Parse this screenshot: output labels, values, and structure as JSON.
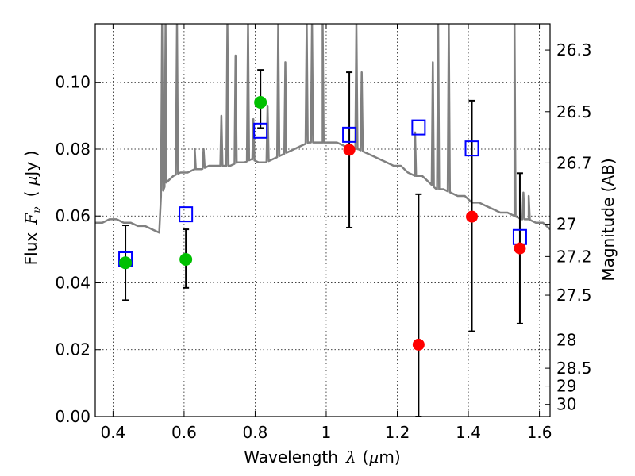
{
  "chart_data": {
    "type": "scatter",
    "xlabel_text": "Wavelength",
    "xlabel_symbol": "λ",
    "xlabel_unit_open": "(",
    "xlabel_mu": "μ",
    "xlabel_unit_close": "m)",
    "ylabel_text": "Flux",
    "ylabel_symbol": "F",
    "ylabel_sub": "ν",
    "ylabel_unit_open": "(",
    "ylabel_mu": "μ",
    "ylabel_unit_close": "Jy )",
    "y2label": "Magnitude (AB)",
    "xlim": [
      0.35,
      1.63
    ],
    "ylim": [
      0.0,
      0.1175
    ],
    "grid": true,
    "x_ticks": [
      0.4,
      0.6,
      0.8,
      1.0,
      1.2,
      1.4,
      1.6
    ],
    "x_tick_labels": [
      "0.4",
      "0.6",
      "0.8",
      "1",
      "1.2",
      "1.4",
      "1.6"
    ],
    "y_ticks": [
      0.0,
      0.02,
      0.04,
      0.06,
      0.08,
      0.1
    ],
    "y_tick_labels": [
      "0.00",
      "0.02",
      "0.04",
      "0.06",
      "0.08",
      "0.10"
    ],
    "mag_ticks": [
      26.3,
      26.5,
      26.7,
      27,
      27.2,
      27.5,
      28,
      28.5,
      29,
      30
    ],
    "mag_tick_labels": [
      "26.3",
      "26.5",
      "26.7",
      "27",
      "27.2",
      "27.5",
      "28",
      "28.5",
      "29",
      "30"
    ],
    "colors": {
      "model": "#808080",
      "detection": "#00c000",
      "measurement": "#ff0000",
      "model_photometry": "#0000ff",
      "errorbar": "#000000"
    },
    "series": [
      {
        "kind": "model_spectrum",
        "x": [
          0.35,
          0.37,
          0.39,
          0.41,
          0.43,
          0.45,
          0.47,
          0.49,
          0.51,
          0.53,
          0.535,
          0.55,
          0.57,
          0.59,
          0.61,
          0.63,
          0.65,
          0.67,
          0.69,
          0.71,
          0.73,
          0.75,
          0.77,
          0.79,
          0.81,
          0.83,
          0.85,
          0.87,
          0.89,
          0.91,
          0.93,
          0.95,
          0.97,
          0.99,
          1.01,
          1.03,
          1.05,
          1.07,
          1.09,
          1.11,
          1.13,
          1.15,
          1.17,
          1.19,
          1.21,
          1.23,
          1.25,
          1.27,
          1.29,
          1.31,
          1.33,
          1.35,
          1.37,
          1.39,
          1.41,
          1.43,
          1.45,
          1.47,
          1.49,
          1.51,
          1.53,
          1.55,
          1.57,
          1.59,
          1.61,
          1.63
        ],
        "y": [
          0.058,
          0.058,
          0.059,
          0.059,
          0.058,
          0.058,
          0.057,
          0.057,
          0.056,
          0.055,
          0.066,
          0.07,
          0.072,
          0.073,
          0.073,
          0.074,
          0.074,
          0.075,
          0.075,
          0.075,
          0.075,
          0.076,
          0.076,
          0.077,
          0.076,
          0.076,
          0.077,
          0.078,
          0.079,
          0.08,
          0.081,
          0.082,
          0.082,
          0.082,
          0.082,
          0.082,
          0.081,
          0.08,
          0.08,
          0.079,
          0.078,
          0.077,
          0.076,
          0.075,
          0.075,
          0.073,
          0.072,
          0.072,
          0.07,
          0.068,
          0.068,
          0.067,
          0.066,
          0.066,
          0.064,
          0.064,
          0.063,
          0.062,
          0.061,
          0.061,
          0.06,
          0.059,
          0.059,
          0.058,
          0.058,
          0.056
        ],
        "emission_lines": [
          {
            "x": 0.538,
            "peak": 0.1175
          },
          {
            "x": 0.548,
            "peak": 0.1175
          },
          {
            "x": 0.58,
            "peak": 0.1175
          },
          {
            "x": 0.63,
            "peak": 0.08
          },
          {
            "x": 0.655,
            "peak": 0.08
          },
          {
            "x": 0.705,
            "peak": 0.09
          },
          {
            "x": 0.722,
            "peak": 0.1175
          },
          {
            "x": 0.745,
            "peak": 0.108
          },
          {
            "x": 0.78,
            "peak": 0.1175
          },
          {
            "x": 0.795,
            "peak": 0.089
          },
          {
            "x": 0.835,
            "peak": 0.093
          },
          {
            "x": 0.865,
            "peak": 0.1175
          },
          {
            "x": 0.885,
            "peak": 0.106
          },
          {
            "x": 0.945,
            "peak": 0.1175
          },
          {
            "x": 0.96,
            "peak": 0.1175
          },
          {
            "x": 0.99,
            "peak": 0.1175
          },
          {
            "x": 1.085,
            "peak": 0.1175
          },
          {
            "x": 1.1,
            "peak": 0.103
          },
          {
            "x": 1.25,
            "peak": 0.085
          },
          {
            "x": 1.3,
            "peak": 0.106
          },
          {
            "x": 1.315,
            "peak": 0.1175
          },
          {
            "x": 1.345,
            "peak": 0.1175
          },
          {
            "x": 1.53,
            "peak": 0.1175
          },
          {
            "x": 1.555,
            "peak": 0.067
          },
          {
            "x": 1.57,
            "peak": 0.066
          }
        ]
      },
      {
        "kind": "model_photometry",
        "marker": "open-square",
        "x": [
          0.435,
          0.605,
          0.815,
          1.065,
          1.26,
          1.41,
          1.545
        ],
        "y": [
          0.047,
          0.0605,
          0.0855,
          0.0843,
          0.0865,
          0.0802,
          0.0537
        ]
      },
      {
        "kind": "detection",
        "marker": "filled-circle",
        "x": [
          0.435,
          0.605,
          0.815
        ],
        "y": [
          0.046,
          0.047,
          0.094
        ],
        "yerr_low": [
          0.0348,
          0.0385,
          0.0863
        ],
        "yerr_high": [
          0.0572,
          0.056,
          0.1037
        ]
      },
      {
        "kind": "measurement",
        "marker": "filled-circle",
        "x": [
          1.065,
          1.26,
          1.41,
          1.545
        ],
        "y": [
          0.0798,
          0.0215,
          0.0598,
          0.0503
        ],
        "yerr_low": [
          0.0565,
          0.0,
          0.0255,
          0.0278
        ],
        "yerr_high": [
          0.103,
          0.0665,
          0.0945,
          0.0728
        ]
      }
    ]
  }
}
